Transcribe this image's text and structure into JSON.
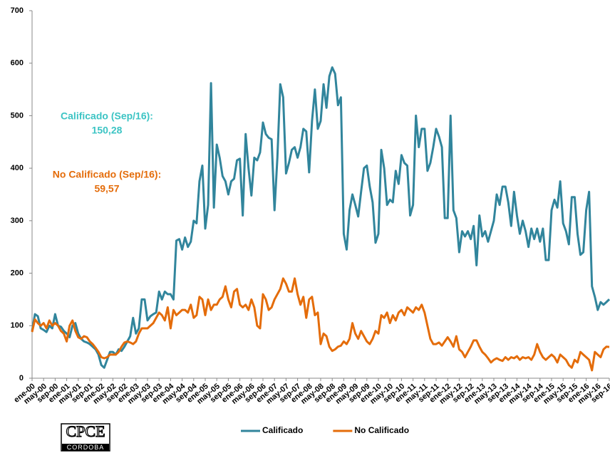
{
  "chart_data": {
    "type": "line",
    "categories": [
      "ene-00",
      null,
      null,
      null,
      "may-00",
      null,
      null,
      null,
      "sep-00",
      null,
      null,
      null,
      "ene-01",
      null,
      null,
      null,
      "may-01",
      null,
      null,
      null,
      "sep-01",
      null,
      null,
      null,
      "ene-02",
      null,
      null,
      null,
      "may-02",
      null,
      null,
      null,
      "sep-02",
      null,
      null,
      null,
      "ene-03",
      null,
      null,
      null,
      "may-03",
      null,
      null,
      null,
      "sep-03",
      null,
      null,
      null,
      "ene-04",
      null,
      null,
      null,
      "may-04",
      null,
      null,
      null,
      "sep-04",
      null,
      null,
      null,
      "ene-05",
      null,
      null,
      null,
      "may-05",
      null,
      null,
      null,
      "sep-05",
      null,
      null,
      null,
      "ene-06",
      null,
      null,
      null,
      "may-06",
      null,
      null,
      null,
      "sep-06",
      null,
      null,
      null,
      "ene-07",
      null,
      null,
      null,
      "may-07",
      null,
      null,
      null,
      "sep-07",
      null,
      null,
      null,
      "ene-08",
      null,
      null,
      null,
      "may-08",
      null,
      null,
      null,
      "sep-08",
      null,
      null,
      null,
      "ene-09",
      null,
      null,
      null,
      "may-09",
      null,
      null,
      null,
      "sep-09",
      null,
      null,
      null,
      "ene-10",
      null,
      null,
      null,
      "may-10",
      null,
      null,
      null,
      "sep-10",
      null,
      null,
      null,
      "ene-11",
      null,
      null,
      null,
      "may-11",
      null,
      null,
      null,
      "sep-11",
      null,
      null,
      null,
      "ene-12",
      null,
      null,
      null,
      "may-12",
      null,
      null,
      null,
      "sep-12",
      null,
      null,
      null,
      "ene-13",
      null,
      null,
      null,
      "may-13",
      null,
      null,
      null,
      "sep-13",
      null,
      null,
      null,
      "ene-14",
      null,
      null,
      null,
      "may-14",
      null,
      null,
      null,
      "sep-14",
      null,
      null,
      null,
      "ene-15",
      null,
      null,
      null,
      "may-15",
      null,
      null,
      null,
      "sep-15",
      null,
      null,
      null,
      "ene-16",
      null,
      null,
      null,
      "may-16",
      null,
      null,
      null,
      "sep-16"
    ],
    "series": [
      {
        "name": "Calificado",
        "color": "#31859c",
        "values": [
          90,
          122,
          118,
          95,
          92,
          88,
          100,
          95,
          122,
          100,
          98,
          90,
          85,
          78,
          100,
          105,
          85,
          75,
          70,
          68,
          65,
          60,
          55,
          45,
          25,
          20,
          35,
          50,
          50,
          45,
          55,
          52,
          60,
          70,
          80,
          115,
          85,
          95,
          150,
          150,
          110,
          118,
          122,
          125,
          165,
          150,
          165,
          160,
          160,
          150,
          262,
          265,
          245,
          268,
          250,
          260,
          300,
          295,
          375,
          405,
          285,
          330,
          562,
          325,
          445,
          420,
          385,
          375,
          350,
          375,
          380,
          415,
          418,
          310,
          465,
          400,
          348,
          420,
          415,
          430,
          487,
          465,
          458,
          455,
          320,
          420,
          560,
          535,
          390,
          410,
          435,
          440,
          420,
          440,
          475,
          470,
          392,
          490,
          550,
          475,
          490,
          560,
          515,
          575,
          592,
          580,
          520,
          535,
          275,
          245,
          320,
          350,
          330,
          308,
          355,
          400,
          405,
          365,
          335,
          258,
          275,
          435,
          400,
          330,
          340,
          335,
          395,
          370,
          425,
          410,
          405,
          310,
          330,
          500,
          440,
          475,
          475,
          395,
          410,
          440,
          475,
          460,
          440,
          305,
          305,
          500,
          320,
          305,
          240,
          280,
          270,
          280,
          265,
          290,
          215,
          310,
          270,
          280,
          260,
          280,
          300,
          350,
          330,
          365,
          365,
          335,
          290,
          355,
          310,
          275,
          300,
          280,
          250,
          285,
          265,
          285,
          260,
          285,
          225,
          225,
          320,
          340,
          325,
          375,
          295,
          280,
          255,
          345,
          345,
          275,
          235,
          240,
          320,
          355,
          175,
          155,
          130,
          145,
          140,
          145,
          150.28
        ]
      },
      {
        "name": "No Calificado",
        "color": "#e46c0a",
        "values": [
          88,
          112,
          105,
          100,
          105,
          95,
          110,
          100,
          105,
          100,
          90,
          85,
          70,
          100,
          110,
          90,
          78,
          75,
          80,
          78,
          70,
          65,
          58,
          50,
          40,
          38,
          40,
          45,
          45,
          45,
          50,
          60,
          68,
          70,
          68,
          65,
          70,
          85,
          95,
          95,
          95,
          100,
          105,
          115,
          125,
          120,
          110,
          135,
          95,
          130,
          120,
          125,
          130,
          130,
          125,
          140,
          115,
          120,
          155,
          150,
          120,
          150,
          130,
          140,
          140,
          150,
          155,
          175,
          150,
          135,
          165,
          170,
          140,
          135,
          140,
          130,
          150,
          135,
          100,
          95,
          160,
          150,
          130,
          135,
          150,
          160,
          170,
          190,
          180,
          165,
          165,
          190,
          160,
          140,
          155,
          115,
          150,
          155,
          120,
          125,
          65,
          85,
          80,
          60,
          52,
          55,
          60,
          62,
          70,
          65,
          75,
          105,
          85,
          75,
          90,
          80,
          70,
          65,
          75,
          90,
          85,
          120,
          115,
          125,
          105,
          120,
          110,
          125,
          130,
          120,
          135,
          130,
          125,
          135,
          130,
          140,
          125,
          100,
          75,
          65,
          65,
          68,
          62,
          70,
          78,
          70,
          60,
          80,
          55,
          50,
          40,
          50,
          60,
          72,
          72,
          60,
          50,
          45,
          38,
          30,
          35,
          38,
          35,
          33,
          40,
          35,
          40,
          38,
          42,
          35,
          40,
          38,
          40,
          35,
          45,
          65,
          50,
          40,
          35,
          40,
          45,
          40,
          30,
          45,
          40,
          35,
          25,
          20,
          35,
          30,
          50,
          45,
          40,
          35,
          15,
          50,
          45,
          40,
          55,
          60,
          59.57
        ]
      }
    ],
    "ylim": [
      0,
      700
    ],
    "yticks": [
      0,
      100,
      200,
      300,
      400,
      500,
      600,
      700
    ],
    "grid": false,
    "legend": "bottom",
    "annotations": [
      {
        "text": "Calificado (Sep/16):",
        "label": "150,28",
        "color": "#3cc4c4"
      },
      {
        "text": "No Calificado (Sep/16):",
        "label": "59,57",
        "color": "#e46c0a"
      }
    ],
    "logo": {
      "text": "CPCE",
      "subtext": "CORDOBA"
    }
  }
}
